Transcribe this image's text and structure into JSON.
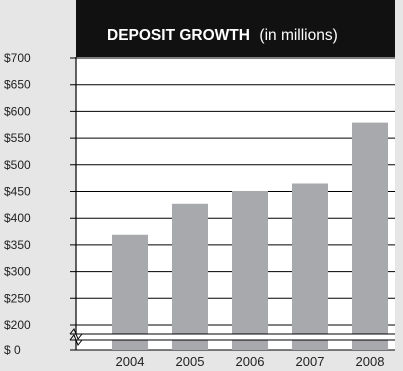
{
  "chart_data": {
    "type": "bar",
    "title": "DEPOSIT GROWTH",
    "title_suffix": "(in millions)",
    "categories": [
      "2004",
      "2005",
      "2006",
      "2007",
      "2008"
    ],
    "values": [
      369,
      427,
      451,
      465,
      579
    ],
    "y_ticks": [
      "$ 0",
      "$200",
      "$250",
      "$300",
      "$350",
      "$400",
      "$450",
      "$500",
      "$550",
      "$600",
      "$650",
      "$700"
    ],
    "ylim": [
      175,
      700
    ],
    "y_axis_break": true,
    "grid": true,
    "colors": {
      "background": "#e6e6e6",
      "plot": "#ffffff",
      "bar": "#a7a9ac",
      "header": "#111111",
      "header_text": "#ffffff"
    }
  }
}
